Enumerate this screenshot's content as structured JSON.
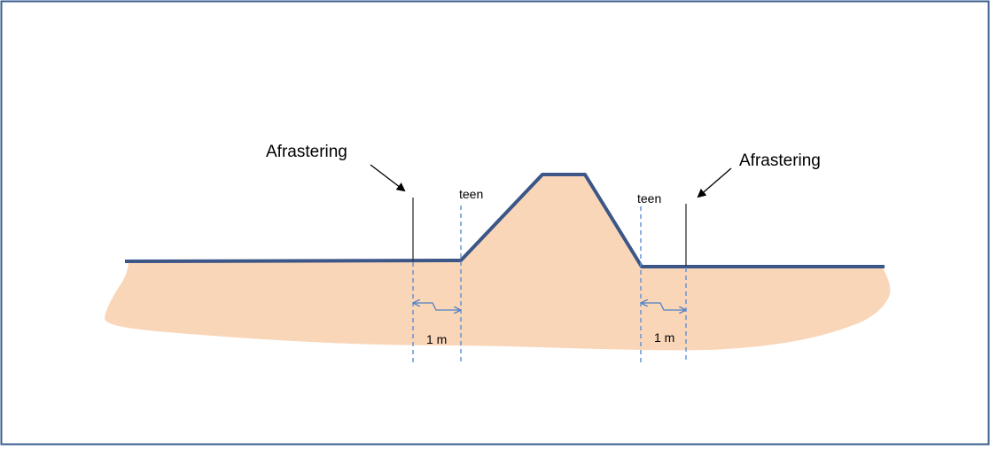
{
  "labels": {
    "fence_left": "Afrastering",
    "fence_right": "Afrastering",
    "toe_left": "teen",
    "toe_right": "teen",
    "distance_left": "1 m",
    "distance_right": "1 m"
  },
  "colors": {
    "border": "#3a5f8f",
    "soil_fill": "#fad6b8",
    "ground_line": "#3b5687",
    "fence_post": "#333333",
    "dashed_line": "#5b8fd6",
    "arrow": "#000000",
    "dimension_arrow": "#4f7fc4"
  }
}
